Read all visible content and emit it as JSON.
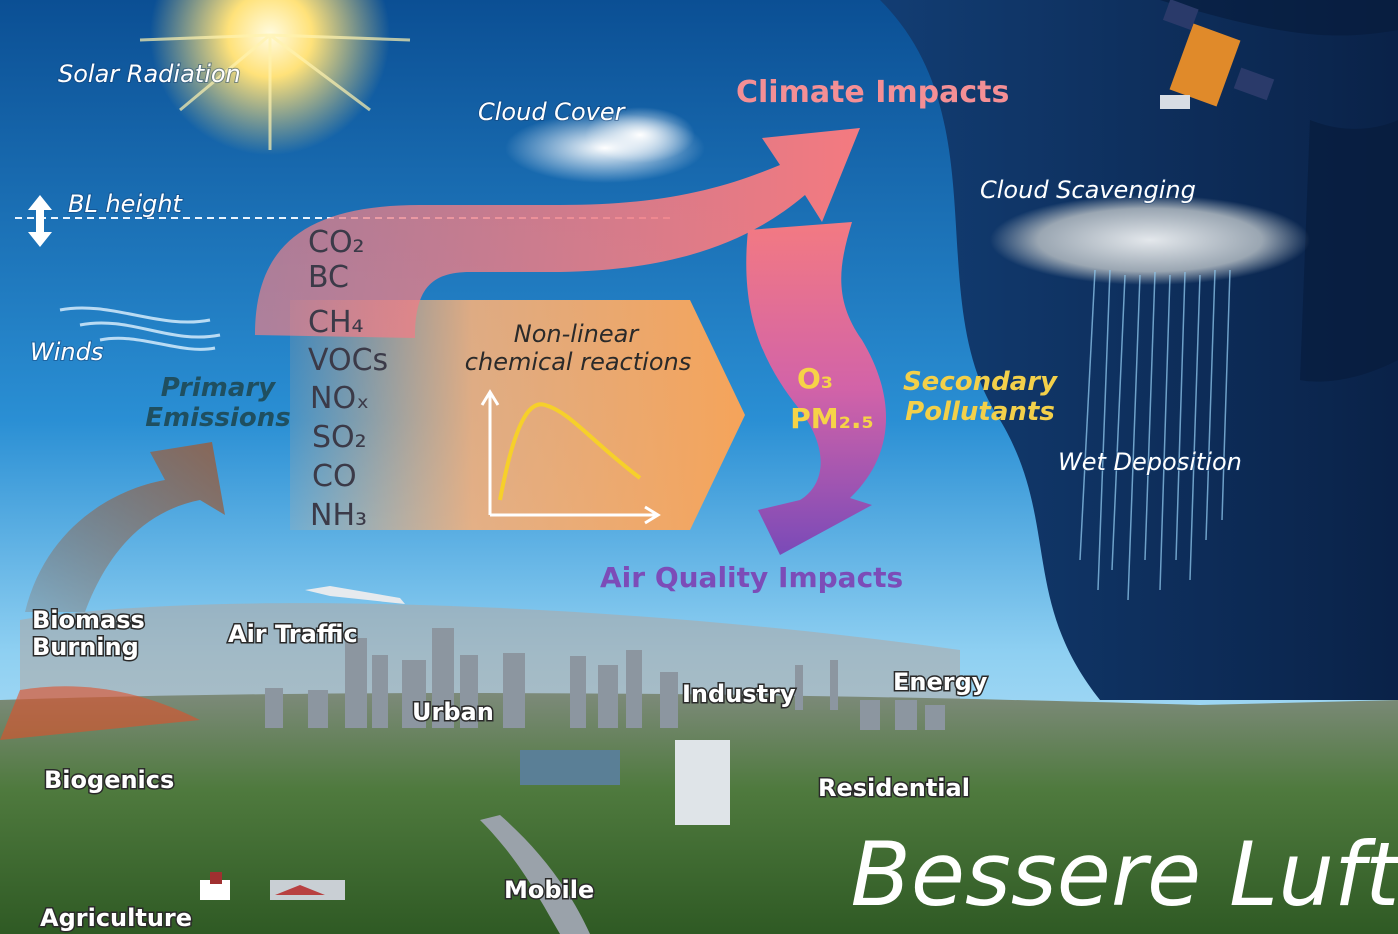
{
  "labels": {
    "solar_radiation": "Solar Radiation",
    "cloud_cover": "Cloud Cover",
    "climate_impacts": "Climate Impacts",
    "bl_height": "BL height",
    "cloud_scavenging": "Cloud Scavenging",
    "winds": "Winds",
    "wet_deposition": "Wet Deposition",
    "air_quality_impacts": "Air Quality Impacts",
    "primary_emissions": [
      "Primary",
      "Emissions"
    ]
  },
  "emissions": [
    "CO₂",
    "BC",
    "CH₄",
    "VOCs",
    "NOₓ",
    "SO₂",
    "CO",
    "NH₃"
  ],
  "reactions": [
    "Non-linear",
    "chemical reactions"
  ],
  "secondary": {
    "species": [
      "O₃",
      "PM₂.₅"
    ],
    "title": [
      "Secondary",
      "Pollutants"
    ]
  },
  "sources": {
    "biomass_burning": [
      "Biomass",
      "Burning"
    ],
    "air_traffic": "Air Traffic",
    "urban": "Urban",
    "industry": "Industry",
    "energy": "Energy",
    "biogenics": "Biogenics",
    "residential": "Residential",
    "mobile": "Mobile",
    "agriculture": "Agriculture"
  },
  "watermark": "Bessere Luft"
}
